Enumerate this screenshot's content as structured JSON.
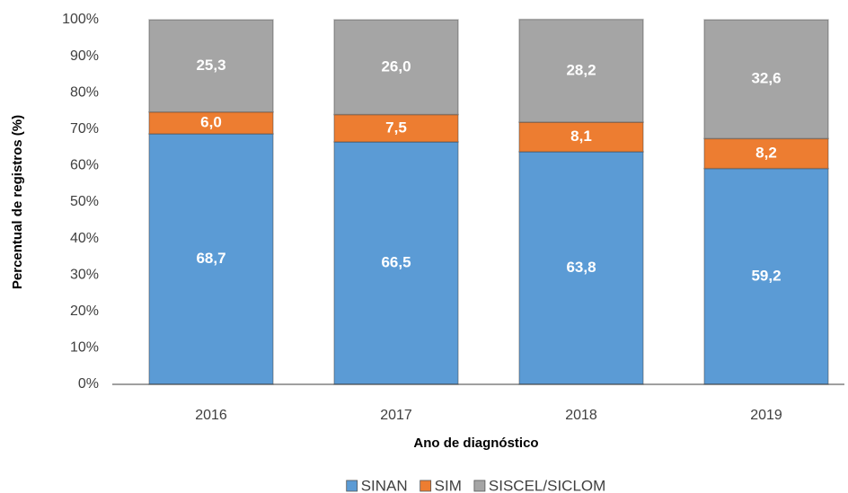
{
  "chart_data": {
    "type": "stacked_bar",
    "x_label": "Ano de diagnóstico",
    "y_label": "Percentual de registros (%)",
    "categories": [
      "2016",
      "2017",
      "2018",
      "2019"
    ],
    "series": [
      {
        "name": "SINAN",
        "color": "#5b9bd5",
        "values": [
          68.7,
          66.5,
          63.8,
          59.2
        ],
        "value_labels": [
          "68,7",
          "66,5",
          "63,8",
          "59,2"
        ]
      },
      {
        "name": "SIM",
        "color": "#ed7d31",
        "values": [
          6.0,
          7.5,
          8.1,
          8.2
        ],
        "value_labels": [
          "6,0",
          "7,5",
          "8,1",
          "8,2"
        ]
      },
      {
        "name": "SISCEL/SICLOM",
        "color": "#a5a5a5",
        "values": [
          25.3,
          26.0,
          28.2,
          32.6
        ],
        "value_labels": [
          "25,3",
          "26,0",
          "28,2",
          "32,6"
        ]
      }
    ],
    "ylim": [
      0,
      100
    ],
    "yticks": [
      {
        "value": 0,
        "label": "0%"
      },
      {
        "value": 10,
        "label": "10%"
      },
      {
        "value": 20,
        "label": "20%"
      },
      {
        "value": 30,
        "label": "30%"
      },
      {
        "value": 40,
        "label": "40%"
      },
      {
        "value": 50,
        "label": "50%"
      },
      {
        "value": 60,
        "label": "60%"
      },
      {
        "value": 70,
        "label": "70%"
      },
      {
        "value": 80,
        "label": "80%"
      },
      {
        "value": 90,
        "label": "90%"
      },
      {
        "value": 100,
        "label": "100%"
      }
    ],
    "legend": "bottom"
  }
}
